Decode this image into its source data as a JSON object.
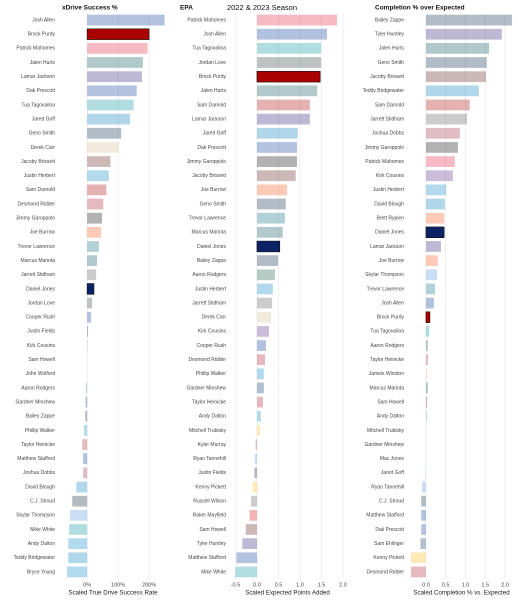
{
  "header": {
    "title": "2022 & 2023 Season"
  },
  "highlight": [
    "Brock Purdy",
    "Daniel Jones"
  ],
  "bar_opacity": 0.3,
  "grid": true,
  "chart_data": [
    {
      "type": "bar",
      "orientation": "horizontal",
      "title": "xDrive Success %",
      "x_label": "Scaled True Drive Success Rate",
      "categories": [
        "Josh Allen",
        "Brock Purdy",
        "Patrick Mahomes",
        "Jalen Hurts",
        "Lamar Jackson",
        "Dak Prescott",
        "Tua Tagovailoa",
        "Jared Goff",
        "Geno Smith",
        "Derek Carr",
        "Jacoby Brissett",
        "Justin Herbert",
        "Sam Darnold",
        "Desmond Ridder",
        "Jimmy Garoppolo",
        "Joe Burrow",
        "Trevor Lawrence",
        "Marcus Mariota",
        "Jarrett Stidham",
        "Daniel Jones",
        "Jordan Love",
        "Cooper Rush",
        "Justin Fields",
        "Kirk Cousins",
        "Sam Howell",
        "John Wolford",
        "Aaron Rodgers",
        "Gardner Minshew",
        "Bailey Zappe",
        "Phillip Walker",
        "Taylor Heinicke",
        "Matthew Stafford",
        "Joshua Dobbs",
        "David Blough",
        "C.J. Stroud",
        "Skylar Thompson",
        "Mike White",
        "Andy Dalton",
        "Teddy Bridgewater",
        "Bryce Young"
      ],
      "values": [
        250,
        200,
        195,
        180,
        177,
        160,
        150,
        138,
        110,
        103,
        75,
        70,
        62,
        52,
        48,
        45,
        38,
        32,
        29,
        22,
        16,
        13,
        3,
        1,
        0,
        0,
        -3,
        -5,
        -6,
        -10,
        -16,
        -13,
        -13,
        -35,
        -48,
        -55,
        -58,
        -61,
        -61,
        -65
      ],
      "colors": [
        "#00338D",
        "#AA0000",
        "#E31837",
        "#004C54",
        "#241773",
        "#003594",
        "#008E97",
        "#0076B6",
        "#002244",
        "#D3BC8D",
        "#5A1414",
        "#0080C6",
        "#AA0000",
        "#A71930",
        "#000000",
        "#FB4F14",
        "#006778",
        "#004C54",
        "#555555",
        "#0B2265",
        "#203731",
        "#003594",
        "#0B162A",
        "#4F2683",
        "#5A1414",
        "#003594",
        "#125740",
        "#002C5F",
        "#002244",
        "#0085CA",
        "#A71930",
        "#003594",
        "#97233F",
        "#0076B6",
        "#03202F",
        "#4B92DB",
        "#008E97",
        "#0085CA",
        "#0076B6",
        "#0085CA"
      ],
      "xlim": [
        -94,
        261
      ],
      "xticks": [
        {
          "value": 0,
          "label": "0%"
        },
        {
          "value": 100,
          "label": "100%"
        },
        {
          "value": 200,
          "label": "200%"
        }
      ]
    },
    {
      "type": "bar",
      "orientation": "horizontal",
      "title": "EPA",
      "x_label": "Scaled Expected Points Added",
      "categories": [
        "Patrick Mahomes",
        "Josh Allen",
        "Tua Tagovailoa",
        "Jordan Love",
        "Brock Purdy",
        "Jalen Hurts",
        "Sam Darnold",
        "Lamar Jackson",
        "Jared Goff",
        "Dak Prescott",
        "Jimmy Garoppolo",
        "Jacoby Brissett",
        "Joe Burrow",
        "Geno Smith",
        "Trevor Lawrence",
        "Marcus Mariota",
        "Daniel Jones",
        "Bailey Zappe",
        "Aaron Rodgers",
        "Justin Herbert",
        "Jarrett Stidham",
        "Derek Carr",
        "Kirk Cousins",
        "Cooper Rush",
        "Desmond Ridder",
        "Phillip Walker",
        "Gardner Minshew",
        "Taylor Heinicke",
        "Andy Dalton",
        "Mitchell Trubisky",
        "Kyler Murray",
        "Ryan Tannehill",
        "Justin Fields",
        "Kenny Pickett",
        "Russell Wilson",
        "Baker Mayfield",
        "Sam Howell",
        "Tyler Huntley",
        "Matthew Stafford",
        "Mike White"
      ],
      "values": [
        1.86,
        1.63,
        1.49,
        1.49,
        1.47,
        1.4,
        1.23,
        1.23,
        0.95,
        0.93,
        0.93,
        0.9,
        0.7,
        0.67,
        0.65,
        0.6,
        0.53,
        0.49,
        0.42,
        0.37,
        0.35,
        0.33,
        0.28,
        0.21,
        0.19,
        0.16,
        0.16,
        0.14,
        0.09,
        0.07,
        -0.03,
        -0.05,
        -0.06,
        -0.1,
        -0.14,
        -0.17,
        -0.26,
        -0.34,
        -0.48,
        -0.5
      ],
      "colors": [
        "#E31837",
        "#00338D",
        "#008E97",
        "#203731",
        "#AA0000",
        "#004C54",
        "#AA0000",
        "#241773",
        "#0076B6",
        "#003594",
        "#000000",
        "#5A1414",
        "#FB4F14",
        "#002244",
        "#006778",
        "#004C54",
        "#0B2265",
        "#002244",
        "#125740",
        "#0080C6",
        "#555555",
        "#D3BC8D",
        "#4F2683",
        "#003594",
        "#A71930",
        "#0085CA",
        "#002C5F",
        "#A71930",
        "#0085CA",
        "#FFB612",
        "#97233F",
        "#4B92DB",
        "#0B162A",
        "#FFB612",
        "#555555",
        "#D50A0A",
        "#5A1414",
        "#241773",
        "#003594",
        "#008E97"
      ],
      "xlim": [
        -0.65,
        2.07
      ],
      "xticks": [
        -0.5,
        {
          "value": 0,
          "label": "0.0"
        },
        0.5,
        {
          "value": 1,
          "label": "1.0"
        },
        1.5,
        {
          "value": 2,
          "label": "2.0"
        }
      ]
    },
    {
      "type": "bar",
      "orientation": "horizontal",
      "title": "Completion % over Expected",
      "x_label": "Scaled Completion % vs. Expected",
      "categories": [
        "Bailey Zappe",
        "Tyler Huntley",
        "Jalen Hurts",
        "Geno Smith",
        "Jacoby Brissett",
        "Teddy Bridgewater",
        "Sam Darnold",
        "Jarrett Stidham",
        "Joshua Dobbs",
        "Jimmy Garoppolo",
        "Patrick Mahomes",
        "Kirk Cousins",
        "Justin Herbert",
        "David Blough",
        "Brett Rypien",
        "Daniel Jones",
        "Lamar Jackson",
        "Joe Burrow",
        "Skylar Thompson",
        "Trevor Lawrence",
        "Josh Allen",
        "Brock Purdy",
        "Tua Tagovailoa",
        "Aaron Rodgers",
        "Taylor Heinicke",
        "Jameis Winston",
        "Marcus Mariota",
        "Sam Howell",
        "Andy Dalton",
        "Mitchell Trubisky",
        "Gardner Minshew",
        "Mac Jones",
        "Jared Goff",
        "Ryan Tannehill",
        "C.J. Stroud",
        "Matthew Stafford",
        "Dak Prescott",
        "Sam Ehlinger",
        "Kenny Pickett",
        "Desmond Ridder"
      ],
      "values": [
        2.18,
        1.92,
        1.6,
        1.54,
        1.52,
        1.34,
        1.11,
        1.04,
        0.86,
        0.81,
        0.73,
        0.68,
        0.51,
        0.48,
        0.46,
        0.46,
        0.38,
        0.3,
        0.28,
        0.23,
        0.2,
        0.1,
        0.08,
        0.05,
        0.05,
        0.03,
        0.05,
        0.03,
        0.02,
        0,
        0,
        0,
        -0.01,
        -0.1,
        -0.12,
        -0.12,
        -0.12,
        -0.14,
        -0.38,
        -0.38
      ],
      "colors": [
        "#002244",
        "#241773",
        "#004C54",
        "#002244",
        "#5A1414",
        "#0076B6",
        "#AA0000",
        "#555555",
        "#97233F",
        "#000000",
        "#E31837",
        "#4F2683",
        "#0080C6",
        "#0076B6",
        "#FB4F14",
        "#0B2265",
        "#241773",
        "#FB4F14",
        "#4B92DB",
        "#006778",
        "#00338D",
        "#AA0000",
        "#008E97",
        "#125740",
        "#A71930",
        "#D3BC8D",
        "#004C54",
        "#5A1414",
        "#0085CA",
        "#FFB612",
        "#002C5F",
        "#002244",
        "#0076B6",
        "#4B92DB",
        "#03202F",
        "#003594",
        "#003594",
        "#002C5F",
        "#FFB612",
        "#A71930"
      ],
      "xlim": [
        -0.48,
        2.28
      ],
      "xticks": [
        {
          "value": 0,
          "label": "0.0"
        },
        0.5,
        {
          "value": 1,
          "label": "1.0"
        },
        1.5,
        {
          "value": 2,
          "label": "2.0"
        }
      ]
    }
  ]
}
